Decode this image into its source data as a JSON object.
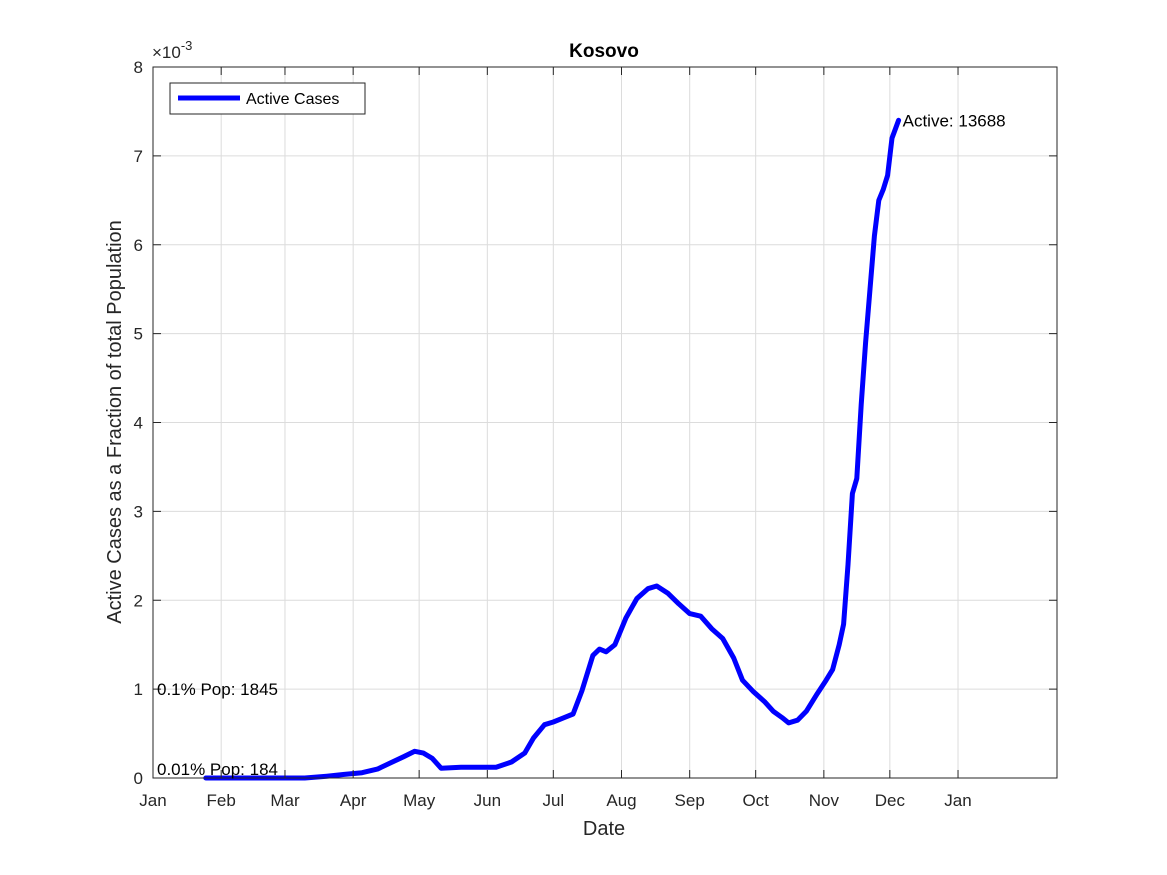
{
  "chart_data": {
    "type": "line",
    "title": "Kosovo",
    "xlabel": "Date",
    "ylabel": "Active Cases as a Fraction of total Population",
    "y_exponent_label": "×10",
    "y_exponent_power": "-3",
    "y_multiplier": 0.001,
    "ylim": [
      0,
      8
    ],
    "yticks": [
      0,
      1,
      2,
      3,
      4,
      5,
      6,
      7,
      8
    ],
    "xlim": [
      "2020-01-01",
      "2021-02-15"
    ],
    "xticks": [
      {
        "date": "2020-01-01",
        "label": "Jan"
      },
      {
        "date": "2020-02-01",
        "label": "Feb"
      },
      {
        "date": "2020-03-01",
        "label": "Mar"
      },
      {
        "date": "2020-04-01",
        "label": "Apr"
      },
      {
        "date": "2020-05-01",
        "label": "May"
      },
      {
        "date": "2020-06-01",
        "label": "Jun"
      },
      {
        "date": "2020-07-01",
        "label": "Jul"
      },
      {
        "date": "2020-08-01",
        "label": "Aug"
      },
      {
        "date": "2020-09-01",
        "label": "Sep"
      },
      {
        "date": "2020-10-01",
        "label": "Oct"
      },
      {
        "date": "2020-11-01",
        "label": "Nov"
      },
      {
        "date": "2020-12-01",
        "label": "Dec"
      },
      {
        "date": "2021-01-01",
        "label": "Jan"
      }
    ],
    "grid": true,
    "legend_position": "top-left",
    "series": [
      {
        "name": "Active Cases",
        "color": "#0000ff",
        "points": [
          [
            "2020-01-25",
            0.0
          ],
          [
            "2020-03-10",
            0.0
          ],
          [
            "2020-03-20",
            0.02
          ],
          [
            "2020-03-28",
            0.04
          ],
          [
            "2020-04-05",
            0.06
          ],
          [
            "2020-04-12",
            0.1
          ],
          [
            "2020-04-18",
            0.17
          ],
          [
            "2020-04-24",
            0.24
          ],
          [
            "2020-04-29",
            0.3
          ],
          [
            "2020-05-03",
            0.28
          ],
          [
            "2020-05-07",
            0.22
          ],
          [
            "2020-05-11",
            0.11
          ],
          [
            "2020-05-20",
            0.12
          ],
          [
            "2020-05-30",
            0.12
          ],
          [
            "2020-06-05",
            0.12
          ],
          [
            "2020-06-12",
            0.18
          ],
          [
            "2020-06-18",
            0.28
          ],
          [
            "2020-06-22",
            0.45
          ],
          [
            "2020-06-27",
            0.6
          ],
          [
            "2020-07-01",
            0.63
          ],
          [
            "2020-07-06",
            0.68
          ],
          [
            "2020-07-10",
            0.72
          ],
          [
            "2020-07-14",
            0.98
          ],
          [
            "2020-07-19",
            1.38
          ],
          [
            "2020-07-22",
            1.45
          ],
          [
            "2020-07-25",
            1.42
          ],
          [
            "2020-07-29",
            1.5
          ],
          [
            "2020-08-03",
            1.8
          ],
          [
            "2020-08-08",
            2.02
          ],
          [
            "2020-08-13",
            2.13
          ],
          [
            "2020-08-17",
            2.16
          ],
          [
            "2020-08-22",
            2.08
          ],
          [
            "2020-08-27",
            1.96
          ],
          [
            "2020-09-01",
            1.85
          ],
          [
            "2020-09-06",
            1.82
          ],
          [
            "2020-09-11",
            1.68
          ],
          [
            "2020-09-16",
            1.57
          ],
          [
            "2020-09-21",
            1.35
          ],
          [
            "2020-09-25",
            1.1
          ],
          [
            "2020-09-30",
            0.97
          ],
          [
            "2020-10-05",
            0.86
          ],
          [
            "2020-10-09",
            0.75
          ],
          [
            "2020-10-13",
            0.68
          ],
          [
            "2020-10-16",
            0.62
          ],
          [
            "2020-10-20",
            0.65
          ],
          [
            "2020-10-24",
            0.75
          ],
          [
            "2020-10-29",
            0.95
          ],
          [
            "2020-11-02",
            1.1
          ],
          [
            "2020-11-05",
            1.22
          ],
          [
            "2020-11-08",
            1.5
          ],
          [
            "2020-11-10",
            1.73
          ],
          [
            "2020-11-12",
            2.4
          ],
          [
            "2020-11-14",
            3.2
          ],
          [
            "2020-11-16",
            3.37
          ],
          [
            "2020-11-18",
            4.2
          ],
          [
            "2020-11-20",
            4.9
          ],
          [
            "2020-11-22",
            5.5
          ],
          [
            "2020-11-24",
            6.1
          ],
          [
            "2020-11-26",
            6.5
          ],
          [
            "2020-11-28",
            6.62
          ],
          [
            "2020-11-30",
            6.78
          ],
          [
            "2020-12-02",
            7.2
          ],
          [
            "2020-12-05",
            7.4
          ]
        ]
      }
    ],
    "annotations": [
      {
        "text": "Active: 13688",
        "date": "2020-12-05",
        "y": 7.4
      },
      {
        "text": "0.1% Pop: 1845",
        "date": "2020-01-01",
        "y": 1.0
      },
      {
        "text": "0.01% Pop: 184",
        "date": "2020-01-01",
        "y": 0.1
      }
    ]
  }
}
